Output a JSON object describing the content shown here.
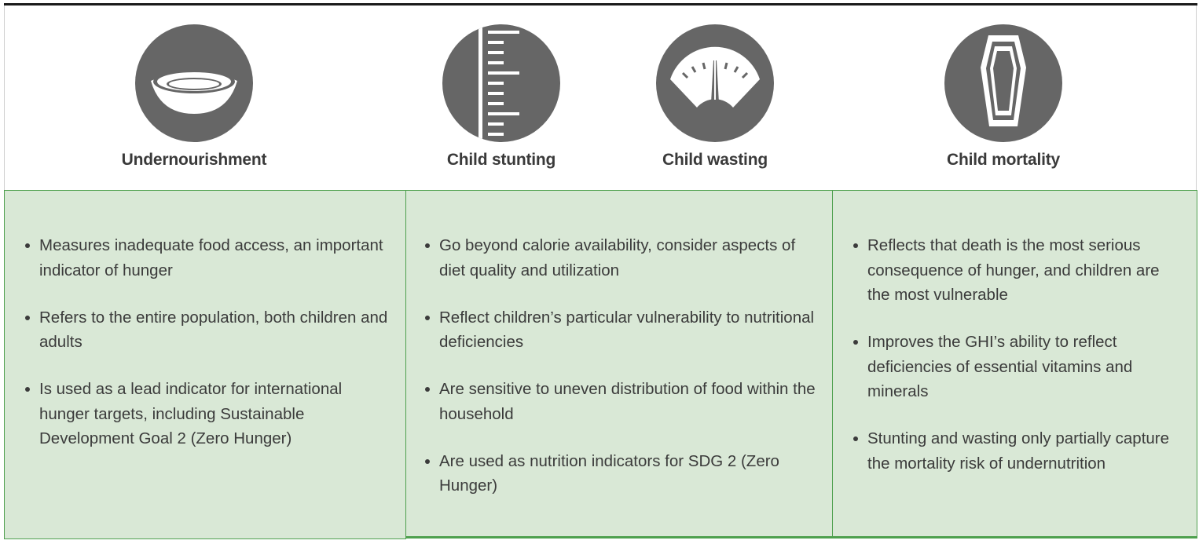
{
  "indicators": [
    {
      "label": "Undernourishment",
      "icon": "bowl-icon"
    },
    {
      "label": "Child stunting",
      "icon": "height-ruler-icon"
    },
    {
      "label": "Child wasting",
      "icon": "weight-scale-icon"
    },
    {
      "label": "Child mortality",
      "icon": "coffin-icon"
    }
  ],
  "panels": [
    {
      "bullets": [
        "Measures inadequate food access, an important indicator of hunger",
        "Refers to the entire population, both children and adults",
        "Is used as a lead indicator for international hunger targets, including Sustainable Development Goal 2 (Zero Hunger)"
      ]
    },
    {
      "bullets": [
        "Go beyond calorie availability, consider aspects of diet quality and utilization",
        "Reflect children’s particular vulnerability to nutritional deficiencies",
        "Are sensitive to uneven distribution of food within the household",
        "Are used as nutrition indicators for SDG 2 (Zero Hunger)"
      ]
    },
    {
      "bullets": [
        "Reflects that death is the most serious consequence of hunger, and children are the most vulnerable",
        "Improves the GHI’s ability to reflect deficiencies of essential vitamins and minerals",
        "Stunting and wasting only partially capture the mortality risk of undernutrition"
      ]
    }
  ],
  "colors": {
    "icon_circle": "#666666",
    "panel_fill": "#d9e8d6",
    "panel_border": "#4ea04e",
    "top_rule": "#1a1a1a"
  }
}
